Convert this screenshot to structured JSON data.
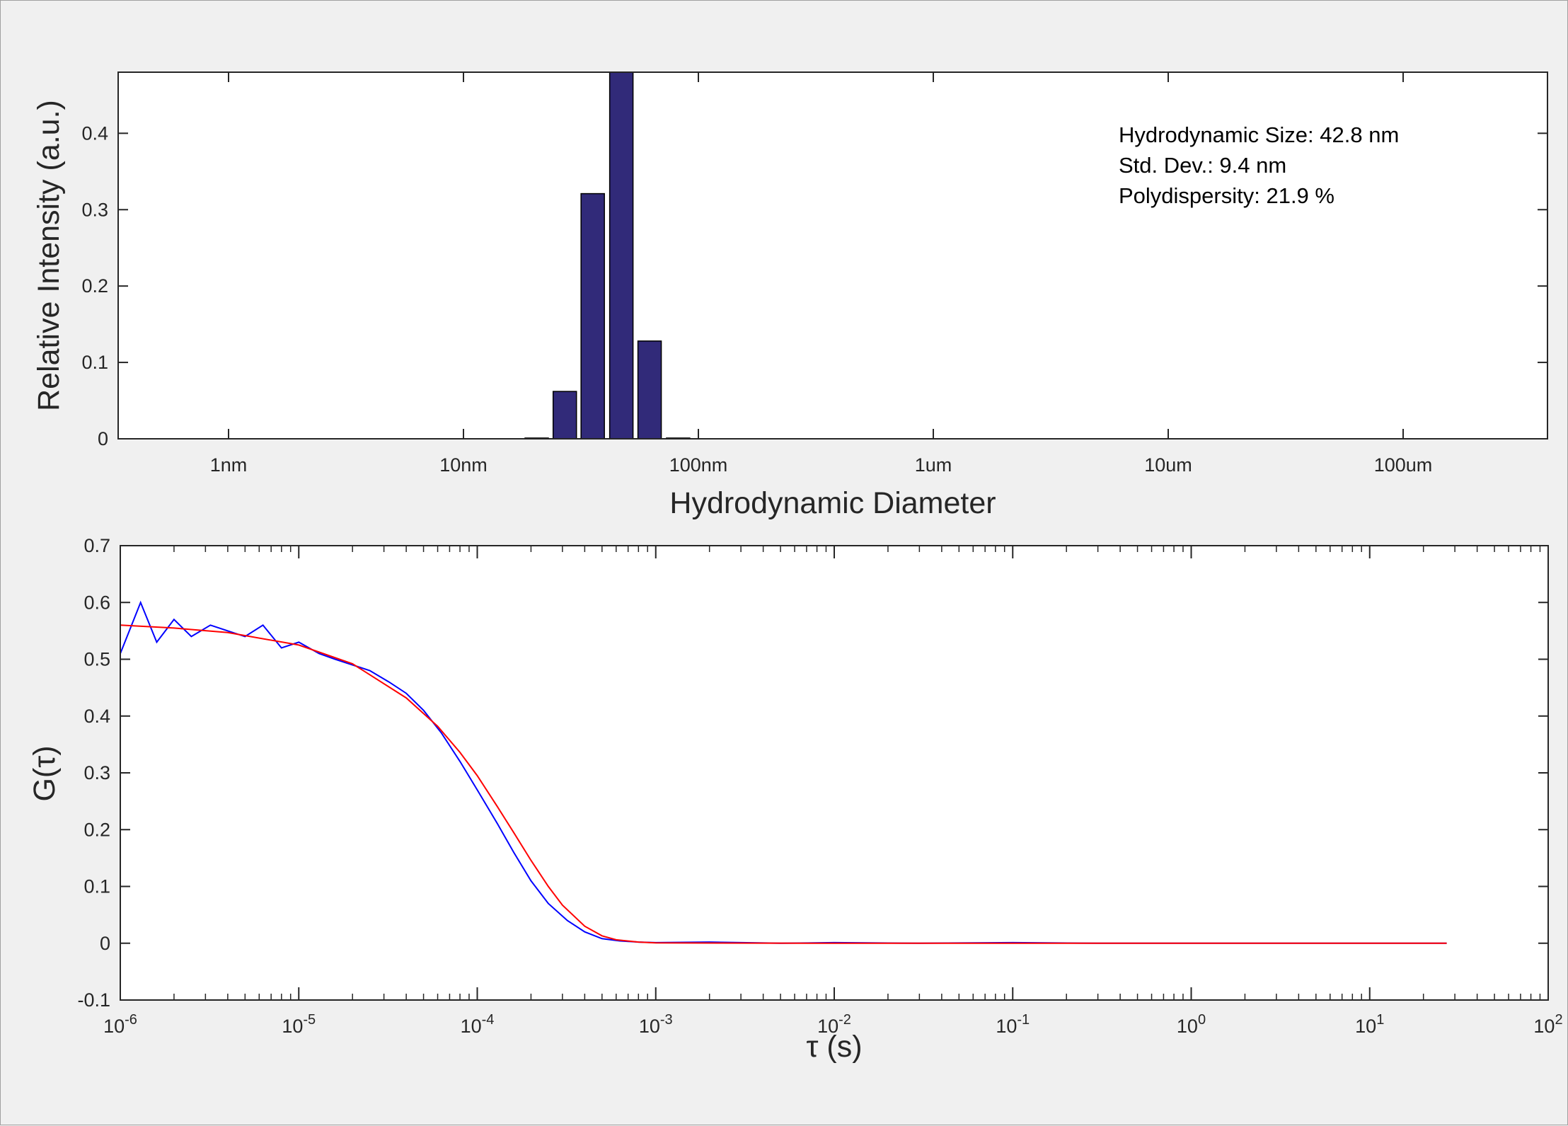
{
  "chart_data": [
    {
      "type": "bar",
      "xscale": "log",
      "xlabel": "Hydrodynamic Diameter",
      "ylabel": "Relative Intensity (a.u.)",
      "ylim": [
        0,
        0.48
      ],
      "yticks": [
        0,
        0.1,
        0.2,
        0.3,
        0.4
      ],
      "ytick_labels": [
        "0",
        "0.1",
        "0.2",
        "0.3",
        "0.4"
      ],
      "xtick_labels": [
        "1nm",
        "10nm",
        "100nm",
        "1um",
        "10um",
        "100um"
      ],
      "categories_nm": [
        20.5,
        27,
        35.5,
        47,
        62,
        82
      ],
      "values": [
        0.001,
        0.062,
        0.321,
        0.484,
        0.128,
        0.001
      ],
      "colors": {
        "bar": "#312a79",
        "edge": "#000000"
      },
      "annotation": [
        "Hydrodynamic Size:  42.8 nm",
        "Std. Dev.:   9.4 nm",
        "Polydispersity: 21.9 %"
      ],
      "grid": false
    },
    {
      "type": "line",
      "xscale": "log",
      "xlabel": "τ (s)",
      "ylabel": "G(τ)",
      "xlim": [
        1e-06,
        100
      ],
      "ylim": [
        -0.1,
        0.7
      ],
      "yticks": [
        -0.1,
        0,
        0.1,
        0.2,
        0.3,
        0.4,
        0.5,
        0.6,
        0.7
      ],
      "ytick_labels": [
        "-0.1",
        "0",
        "0.1",
        "0.2",
        "0.3",
        "0.4",
        "0.5",
        "0.6",
        "0.7"
      ],
      "xticks": [
        {
          "base": "10",
          "exp": "-6"
        },
        {
          "base": "10",
          "exp": "-5"
        },
        {
          "base": "10",
          "exp": "-4"
        },
        {
          "base": "10",
          "exp": "-3"
        },
        {
          "base": "10",
          "exp": "-2"
        },
        {
          "base": "10",
          "exp": "-1"
        },
        {
          "base": "10",
          "exp": "0"
        },
        {
          "base": "10",
          "exp": "1"
        },
        {
          "base": "10",
          "exp": "2"
        }
      ],
      "series": [
        {
          "role": "measured",
          "color": "#0000ff",
          "x": [
            1e-06,
            1.3e-06,
            1.6e-06,
            2e-06,
            2.5e-06,
            3.2e-06,
            4e-06,
            5e-06,
            6.3e-06,
            8e-06,
            1e-05,
            1.3e-05,
            1.6e-05,
            2e-05,
            2.5e-05,
            3.2e-05,
            4e-05,
            5e-05,
            6.3e-05,
            8e-05,
            0.0001,
            0.00013,
            0.00016,
            0.0002,
            0.00025,
            0.00032,
            0.0004,
            0.0005,
            0.00063,
            0.0008,
            0.001,
            0.002,
            0.005,
            0.01,
            0.03,
            0.1,
            0.3,
            1,
            3,
            10,
            27
          ],
          "y": [
            0.51,
            0.6,
            0.53,
            0.57,
            0.54,
            0.56,
            0.55,
            0.54,
            0.56,
            0.52,
            0.53,
            0.51,
            0.5,
            0.49,
            0.48,
            0.46,
            0.44,
            0.41,
            0.37,
            0.32,
            0.27,
            0.21,
            0.16,
            0.11,
            0.07,
            0.04,
            0.02,
            0.008,
            0.004,
            0.002,
            0.001,
            0.002,
            0.0,
            0.001,
            0.0,
            0.001,
            0.0,
            0.0,
            0.0,
            0.0,
            0.0
          ]
        },
        {
          "role": "fit",
          "color": "#ff0000",
          "x": [
            1e-06,
            2e-06,
            4e-06,
            1e-05,
            2e-05,
            4e-05,
            6e-05,
            8e-05,
            0.0001,
            0.00013,
            0.00016,
            0.0002,
            0.00025,
            0.0003,
            0.0004,
            0.0005,
            0.0006,
            0.0008,
            0.001,
            0.01,
            1,
            27
          ],
          "y": [
            0.56,
            0.555,
            0.547,
            0.525,
            0.492,
            0.432,
            0.382,
            0.336,
            0.295,
            0.24,
            0.195,
            0.146,
            0.1,
            0.067,
            0.03,
            0.013,
            0.006,
            0.002,
            0.0005,
            0.0,
            0.0,
            0.0
          ]
        }
      ],
      "grid": false
    }
  ]
}
